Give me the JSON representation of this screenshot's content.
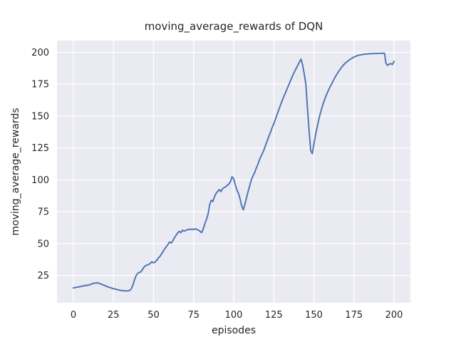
{
  "chart_data": {
    "type": "line",
    "title": "moving_average_rewards of DQN",
    "xlabel": "episodes",
    "ylabel": "moving_average_rewards",
    "x_ticks": [
      0,
      25,
      50,
      75,
      100,
      125,
      150,
      175,
      200
    ],
    "y_ticks": [
      25,
      50,
      75,
      100,
      125,
      150,
      175,
      200
    ],
    "xlim": [
      -10.2,
      210.2
    ],
    "ylim": [
      3.6,
      209.2
    ],
    "grid": true,
    "legend": "none",
    "style": {
      "figure_bg": "#ffffff",
      "axes_bg": "#eaeaf2",
      "grid_color": "#ffffff",
      "line_color": "#4c72b0",
      "text_color": "#262626",
      "line_width": 1.9
    },
    "series": [
      {
        "name": "moving_average_rewards",
        "x_encoding": {
          "start": 0,
          "step": 1
        },
        "y": [
          15.3,
          15.5,
          15.8,
          16.0,
          16.2,
          16.5,
          17.0,
          16.8,
          17.5,
          17.2,
          17.8,
          18.0,
          18.6,
          19.2,
          19.0,
          19.4,
          18.9,
          18.4,
          17.9,
          17.4,
          16.9,
          16.4,
          15.9,
          15.5,
          15.1,
          14.7,
          14.4,
          14.1,
          13.8,
          13.5,
          13.3,
          13.1,
          13.0,
          12.9,
          13.0,
          13.3,
          14.2,
          17.0,
          21.0,
          24.5,
          26.5,
          27.4,
          27.8,
          29.5,
          31.5,
          32.8,
          33.2,
          33.6,
          34.6,
          35.8,
          34.9,
          35.6,
          37.0,
          38.7,
          40.0,
          42.0,
          44.0,
          46.0,
          47.6,
          49.4,
          51.3,
          50.4,
          52.2,
          54.5,
          56.5,
          58.3,
          59.6,
          58.6,
          60.6,
          59.8,
          60.3,
          60.9,
          61.3,
          61.0,
          61.4,
          61.1,
          61.6,
          61.2,
          60.6,
          59.6,
          58.6,
          61.5,
          65.5,
          69.0,
          73.0,
          80.5,
          84.0,
          83.0,
          86.8,
          89.3,
          91.0,
          92.4,
          90.8,
          93.0,
          94.0,
          94.6,
          95.7,
          96.8,
          98.7,
          102.5,
          100.8,
          96.0,
          92.0,
          89.3,
          85.0,
          79.5,
          76.5,
          81.0,
          86.0,
          91.0,
          95.5,
          100.0,
          103.0,
          105.5,
          109.0,
          112.0,
          115.5,
          118.5,
          121.0,
          124.0,
          127.5,
          131.0,
          134.5,
          137.5,
          141.0,
          144.0,
          147.5,
          151.0,
          154.5,
          158.0,
          161.5,
          164.5,
          167.5,
          170.5,
          173.5,
          176.5,
          179.5,
          182.5,
          185.0,
          187.5,
          190.0,
          192.5,
          194.7,
          190.0,
          183.0,
          175.0,
          156.0,
          139.0,
          123.0,
          120.5,
          128.0,
          135.0,
          141.0,
          147.0,
          152.0,
          156.5,
          160.5,
          164.0,
          167.2,
          170.0,
          172.7,
          175.0,
          177.5,
          180.0,
          182.2,
          184.2,
          186.0,
          187.8,
          189.4,
          190.8,
          192.0,
          193.0,
          194.0,
          194.8,
          195.6,
          196.3,
          196.9,
          197.3,
          197.7,
          198.0,
          198.2,
          198.4,
          198.6,
          198.7,
          198.8,
          198.9,
          199.0,
          199.0,
          199.1,
          199.1,
          199.2,
          199.2,
          199.3,
          199.3,
          199.3,
          191.3,
          189.8,
          190.8,
          191.2,
          190.4,
          193.0
        ]
      }
    ]
  }
}
